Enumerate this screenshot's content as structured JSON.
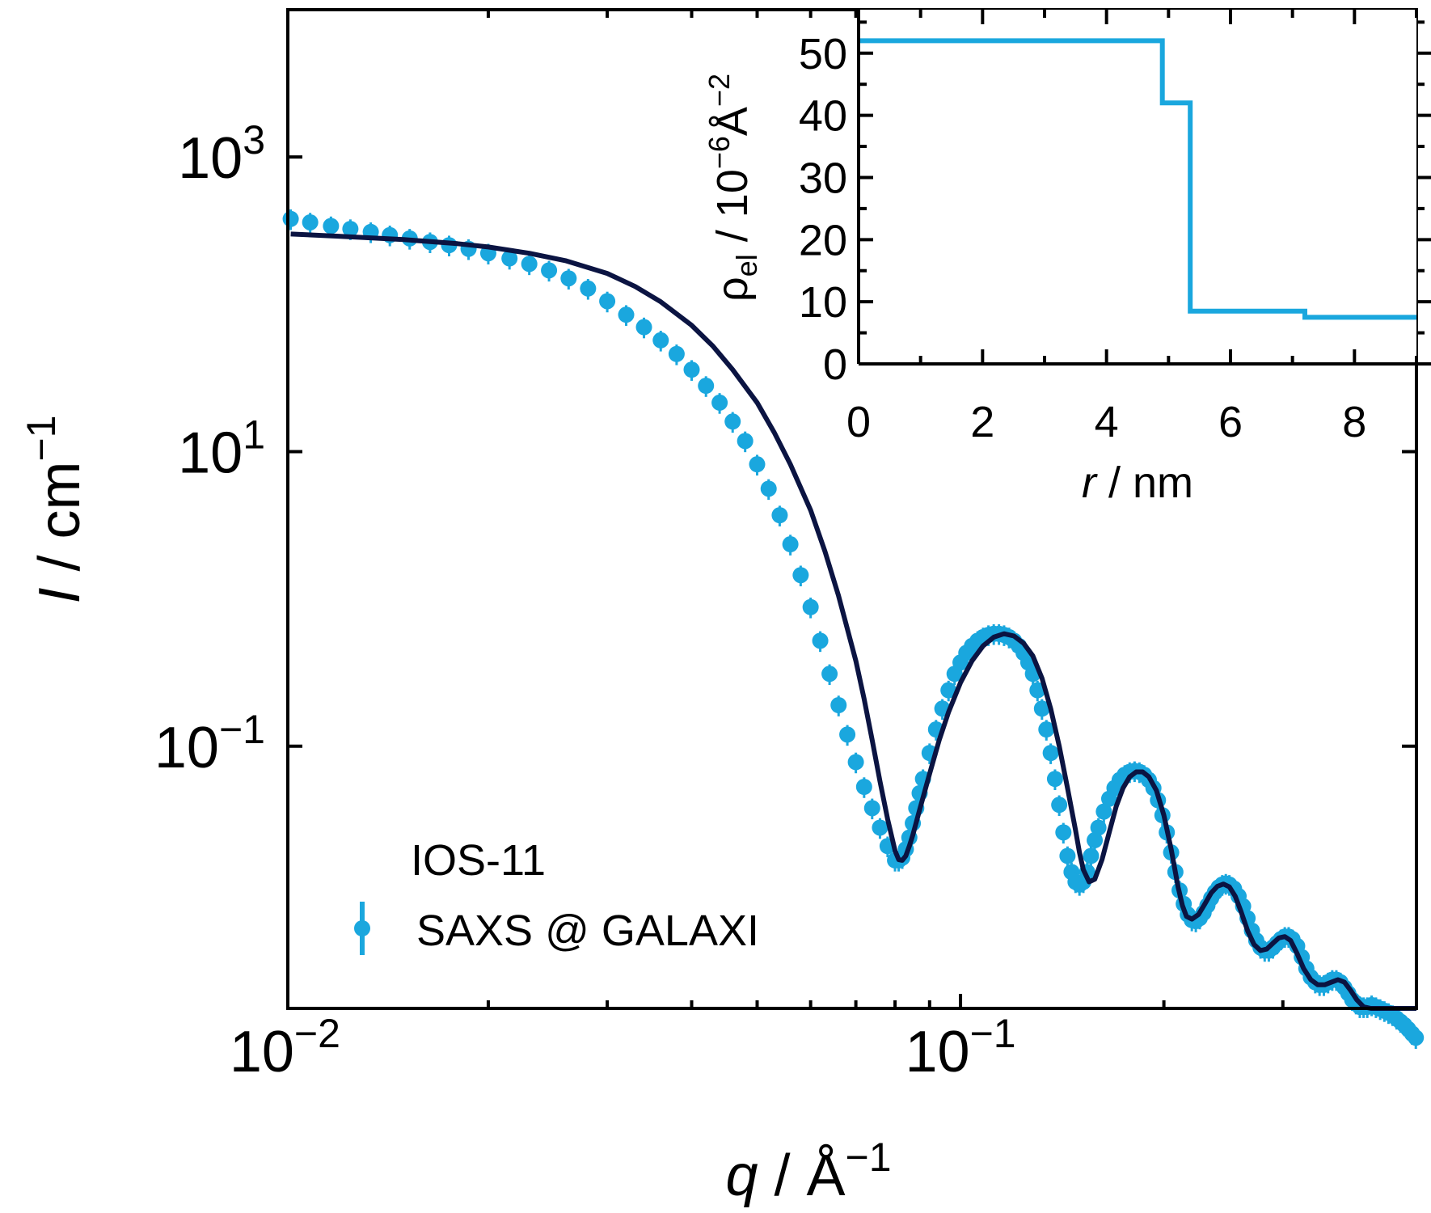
{
  "chart_data": [
    {
      "id": "main",
      "type": "scatter",
      "xscale": "log",
      "yscale": "log",
      "xlim": [
        0.0101,
        0.473
      ],
      "ylim": [
        0.00166,
        10000
      ],
      "xlabel": {
        "symbol": "q",
        "unit_base": "Å",
        "unit_exp": "−1"
      },
      "ylabel": {
        "symbol": "I",
        "unit_base": "cm",
        "unit_exp": "−1"
      },
      "xticks": [
        {
          "value": 0.01,
          "base": "10",
          "exp": "−2"
        },
        {
          "value": 0.1,
          "base": "10",
          "exp": "−1"
        }
      ],
      "yticks": [
        {
          "value": 1000,
          "base": "10",
          "exp": "3"
        },
        {
          "value": 10,
          "base": "10",
          "exp": "1"
        },
        {
          "value": 0.1,
          "base": "10",
          "exp": "−1"
        }
      ],
      "legend": {
        "title": "IOS-11",
        "placement": "lower-left",
        "entries": [
          "SAXS @ GALAXI"
        ]
      },
      "colors": {
        "data": "#1aa7de",
        "fit": "#0b1442",
        "axes": "#000000"
      },
      "series": [
        {
          "name": "SAXS @ GALAXI",
          "kind": "points_with_error_bars",
          "x": [
            0.0102,
            0.0109,
            0.0117,
            0.0125,
            0.0134,
            0.0143,
            0.0153,
            0.0164,
            0.0175,
            0.0187,
            0.02,
            0.0215,
            0.023,
            0.0246,
            0.0263,
            0.0281,
            0.03,
            0.032,
            0.034,
            0.036,
            0.038,
            0.04,
            0.042,
            0.044,
            0.046,
            0.048,
            0.05,
            0.052,
            0.054,
            0.056,
            0.058,
            0.06,
            0.062,
            0.064,
            0.066,
            0.068,
            0.07,
            0.072,
            0.074,
            0.076,
            0.078,
            0.08,
            0.081,
            0.082,
            0.083,
            0.084,
            0.085,
            0.086,
            0.087,
            0.088,
            0.09,
            0.092,
            0.094,
            0.096,
            0.098,
            0.1,
            0.102,
            0.104,
            0.106,
            0.108,
            0.11,
            0.112,
            0.114,
            0.116,
            0.118,
            0.12,
            0.122,
            0.124,
            0.126,
            0.128,
            0.13,
            0.132,
            0.134,
            0.136,
            0.138,
            0.14,
            0.142,
            0.144,
            0.146,
            0.148,
            0.15,
            0.152,
            0.154,
            0.156,
            0.158,
            0.16,
            0.163,
            0.166,
            0.169,
            0.172,
            0.175,
            0.178,
            0.181,
            0.184,
            0.187,
            0.19,
            0.193,
            0.196,
            0.199,
            0.202,
            0.205,
            0.208,
            0.211,
            0.214,
            0.217,
            0.22,
            0.223,
            0.226,
            0.229,
            0.232,
            0.235,
            0.238,
            0.241,
            0.244,
            0.247,
            0.25,
            0.254,
            0.258,
            0.262,
            0.266,
            0.27,
            0.274,
            0.278,
            0.282,
            0.286,
            0.29,
            0.294,
            0.298,
            0.302,
            0.306,
            0.31,
            0.315,
            0.32,
            0.325,
            0.33,
            0.335,
            0.34,
            0.345,
            0.35,
            0.355,
            0.36,
            0.365,
            0.37,
            0.375,
            0.38,
            0.385,
            0.39,
            0.395,
            0.4,
            0.406,
            0.412,
            0.418,
            0.424,
            0.43,
            0.436,
            0.442,
            0.448,
            0.454,
            0.46,
            0.466,
            0.472
          ],
          "y": [
            380,
            360,
            340,
            325,
            310,
            295,
            280,
            265,
            252,
            238,
            222,
            205,
            188,
            170,
            150,
            128,
            105,
            85,
            70,
            57,
            46,
            36,
            28,
            21.5,
            16,
            11.8,
            8.2,
            5.6,
            3.7,
            2.35,
            1.45,
            0.88,
            0.52,
            0.31,
            0.19,
            0.12,
            0.078,
            0.053,
            0.038,
            0.028,
            0.021,
            0.0168,
            0.0168,
            0.0175,
            0.02,
            0.024,
            0.03,
            0.038,
            0.048,
            0.06,
            0.09,
            0.13,
            0.18,
            0.24,
            0.31,
            0.37,
            0.43,
            0.48,
            0.52,
            0.55,
            0.57,
            0.58,
            0.58,
            0.57,
            0.55,
            0.52,
            0.48,
            0.43,
            0.37,
            0.31,
            0.24,
            0.18,
            0.13,
            0.09,
            0.06,
            0.04,
            0.026,
            0.018,
            0.014,
            0.012,
            0.0115,
            0.012,
            0.014,
            0.018,
            0.023,
            0.028,
            0.036,
            0.044,
            0.052,
            0.059,
            0.064,
            0.067,
            0.068,
            0.067,
            0.064,
            0.059,
            0.052,
            0.043,
            0.034,
            0.026,
            0.019,
            0.014,
            0.0105,
            0.0085,
            0.0072,
            0.0066,
            0.0065,
            0.0068,
            0.0074,
            0.0083,
            0.0093,
            0.0102,
            0.011,
            0.0115,
            0.0117,
            0.0115,
            0.0108,
            0.0096,
            0.0082,
            0.0068,
            0.0056,
            0.0048,
            0.0043,
            0.0041,
            0.0041,
            0.0043,
            0.0046,
            0.0049,
            0.0051,
            0.0051,
            0.0049,
            0.0044,
            0.0037,
            0.0031,
            0.0027,
            0.0025,
            0.0024,
            0.0024,
            0.0025,
            0.0026,
            0.0026,
            0.0025,
            0.0023,
            0.0021,
            0.0019,
            0.0018,
            0.0017,
            0.0017,
            0.0017,
            0.00175,
            0.0017,
            0.00165,
            0.0016,
            0.00155,
            0.0015,
            0.00142,
            0.00135,
            0.00128,
            0.0012,
            0.00112,
            0.00105
          ]
        },
        {
          "name": "",
          "kind": "line",
          "x": [
            0.0102,
            0.012,
            0.015,
            0.018,
            0.02,
            0.023,
            0.026,
            0.03,
            0.033,
            0.036,
            0.04,
            0.043,
            0.046,
            0.05,
            0.053,
            0.056,
            0.06,
            0.063,
            0.066,
            0.07,
            0.072,
            0.074,
            0.076,
            0.078,
            0.08,
            0.081,
            0.082,
            0.083,
            0.084,
            0.085,
            0.087,
            0.09,
            0.093,
            0.096,
            0.1,
            0.104,
            0.108,
            0.112,
            0.116,
            0.12,
            0.124,
            0.128,
            0.132,
            0.136,
            0.14,
            0.144,
            0.148,
            0.15,
            0.152,
            0.155,
            0.158,
            0.162,
            0.166,
            0.17,
            0.174,
            0.178,
            0.182,
            0.186,
            0.19,
            0.195,
            0.2,
            0.205,
            0.21,
            0.213,
            0.216,
            0.22,
            0.225,
            0.23,
            0.235,
            0.24,
            0.245,
            0.25,
            0.255,
            0.26,
            0.266,
            0.272,
            0.278,
            0.284,
            0.29,
            0.296,
            0.302,
            0.308,
            0.315,
            0.322,
            0.33,
            0.338,
            0.346,
            0.354,
            0.362,
            0.37,
            0.378,
            0.386,
            0.395,
            0.405,
            0.415,
            0.425,
            0.435,
            0.445,
            0.455,
            0.465,
            0.473
          ],
          "y": [
            300,
            290,
            275,
            258,
            245,
            222,
            198,
            162,
            132,
            104,
            72,
            52,
            36,
            21.5,
            13.5,
            8.2,
            4.0,
            2.1,
            1.05,
            0.38,
            0.21,
            0.11,
            0.058,
            0.032,
            0.0195,
            0.017,
            0.0168,
            0.018,
            0.021,
            0.025,
            0.037,
            0.065,
            0.11,
            0.17,
            0.27,
            0.38,
            0.48,
            0.55,
            0.58,
            0.56,
            0.5,
            0.41,
            0.29,
            0.18,
            0.1,
            0.052,
            0.027,
            0.019,
            0.0145,
            0.012,
            0.0125,
            0.017,
            0.026,
            0.039,
            0.052,
            0.062,
            0.067,
            0.067,
            0.062,
            0.05,
            0.034,
            0.02,
            0.011,
            0.0083,
            0.007,
            0.0067,
            0.0072,
            0.0085,
            0.0101,
            0.0112,
            0.0116,
            0.0111,
            0.0096,
            0.0076,
            0.0056,
            0.0045,
            0.0041,
            0.0042,
            0.0046,
            0.005,
            0.0051,
            0.0048,
            0.0039,
            0.0031,
            0.0026,
            0.0024,
            0.0024,
            0.0025,
            0.0026,
            0.0025,
            0.0022,
            0.0019,
            0.0017,
            0.0016,
            0.0016,
            0.0016,
            0.0015,
            0.00142,
            0.00128,
            0.00112,
            0.001
          ]
        }
      ]
    },
    {
      "id": "inset",
      "type": "line",
      "step": true,
      "xlim": [
        0,
        9
      ],
      "ylim": [
        0,
        57
      ],
      "xlabel": {
        "symbol": "r",
        "unit": "nm"
      },
      "ylabel": {
        "symbol": "ρ",
        "sub": "el",
        "unit_base": "10",
        "unit_base_exp": "−6",
        "unit_base2": "Å",
        "unit_base2_exp": "−2"
      },
      "xticks": [
        0,
        2,
        4,
        6,
        8
      ],
      "yticks": [
        0,
        10,
        20,
        30,
        40,
        50
      ],
      "colors": {
        "line": "#1aa7de",
        "axes": "#000000"
      },
      "series": [
        {
          "name": "",
          "x": [
            0,
            4.9,
            4.9,
            5.35,
            5.35,
            7.2,
            7.2,
            9
          ],
          "y": [
            52,
            52,
            42,
            42,
            8.5,
            8.5,
            7.5,
            7.5
          ]
        }
      ]
    }
  ]
}
